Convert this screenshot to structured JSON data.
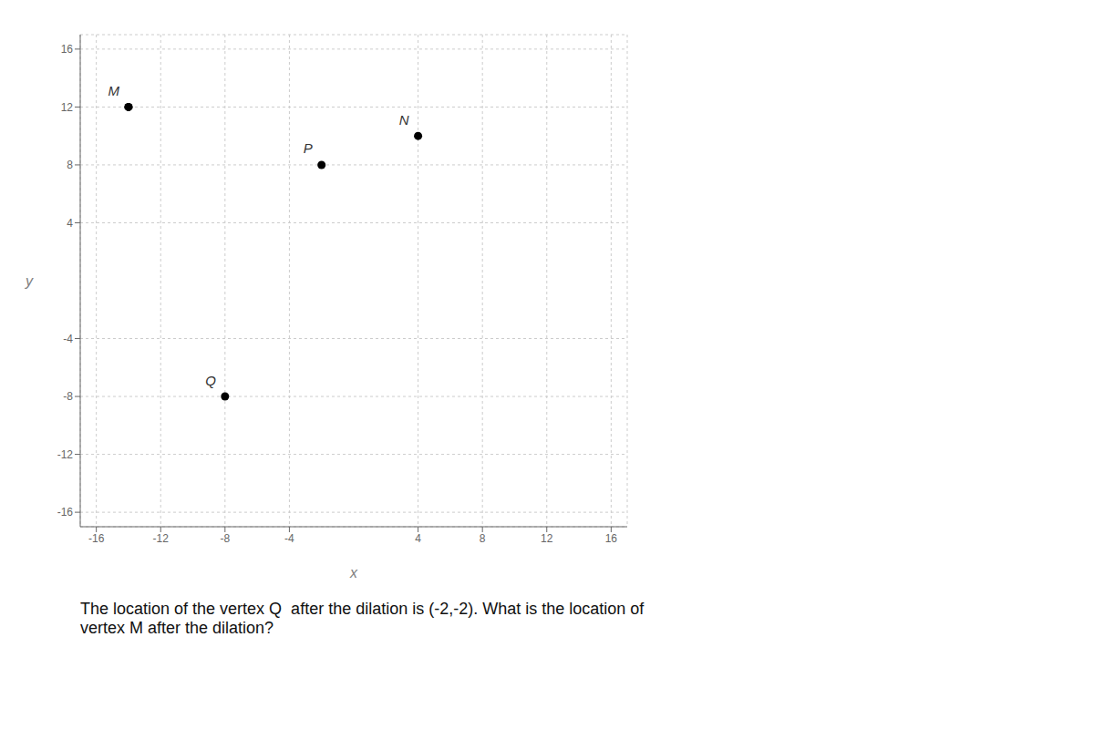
{
  "chart_data": {
    "type": "scatter",
    "title": "The location of the vertex Q  after the dilation is (-2,-2). What is the location of\nvertex M after the dilation?",
    "xlabel": "x",
    "ylabel": "y",
    "series": [
      {
        "name": "MNPQ",
        "x": [
          -14,
          4,
          -2,
          -8,
          -14
        ],
        "values": [
          12,
          10,
          8,
          -8,
          12
        ],
        "point_labels": [
          "M",
          "N",
          "P",
          "Q",
          null
        ],
        "line_style": "solid",
        "marker": "circle"
      }
    ],
    "xlim": [
      -17,
      17
    ],
    "ylim": [
      -17,
      17
    ],
    "xticks": [
      -16,
      -12,
      -8,
      -4,
      4,
      8,
      12,
      16
    ],
    "yticks": [
      -16,
      -12,
      -8,
      -4,
      4,
      8,
      12,
      16
    ],
    "grid": true
  }
}
